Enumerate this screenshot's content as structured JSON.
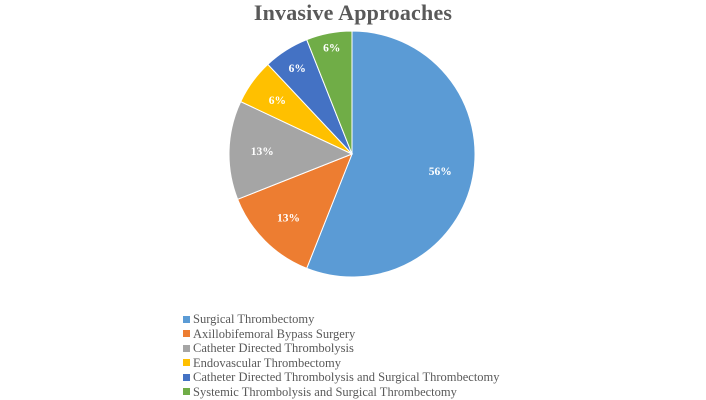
{
  "chart_data": {
    "type": "pie",
    "title": "Invasive Approaches",
    "categories": [
      "Surgical Thrombectomy",
      "Axillobifemoral Bypass Surgery",
      "Catheter Directed Thrombolysis",
      "Endovascular Thrombectomy",
      "Catheter Directed Thrombolysis and Surgical Thrombectomy",
      "Systemic Thrombolysis and Surgical Thrombectomy"
    ],
    "values": [
      56,
      13,
      13,
      6,
      6,
      6
    ],
    "data_labels": [
      "56%",
      "13%",
      "13%",
      "6%",
      "6%",
      "6%"
    ],
    "colors": [
      "#5B9BD5",
      "#ED7D31",
      "#A5A5A5",
      "#FFC000",
      "#4472C4",
      "#70AD47"
    ],
    "legend_position": "bottom"
  }
}
